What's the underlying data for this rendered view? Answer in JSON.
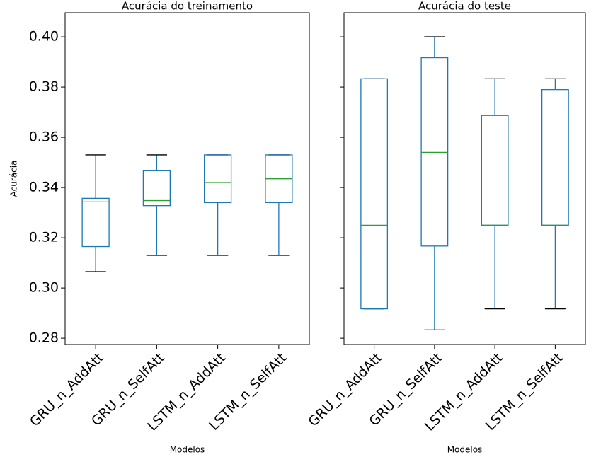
{
  "chart_data": [
    {
      "type": "box",
      "title": "Acurácia do treinamento",
      "xlabel": "Modelos",
      "ylabel": "Acurácia",
      "categories": [
        "GRU_n_AddAtt",
        "GRU_n_SelfAtt",
        "LSTM_n_AddAtt",
        "LSTM_n_SelfAtt"
      ],
      "boxes": [
        {
          "whislo": 0.3065,
          "q1": 0.3165,
          "med": 0.3343,
          "q3": 0.3357,
          "whishi": 0.353
        },
        {
          "whislo": 0.313,
          "q1": 0.3328,
          "med": 0.3348,
          "q3": 0.3467,
          "whishi": 0.353
        },
        {
          "whislo": 0.313,
          "q1": 0.334,
          "med": 0.342,
          "q3": 0.353,
          "whishi": 0.353
        },
        {
          "whislo": 0.313,
          "q1": 0.334,
          "med": 0.3435,
          "q3": 0.353,
          "whishi": 0.353
        }
      ],
      "color": "#1f77b4",
      "median_color": "#2ca02c",
      "ylim": [
        0.2775,
        0.4096
      ],
      "yticks": [
        0.28,
        {
          "value": 0.3,
          "label": "0.30"
        },
        0.32,
        0.34,
        0.36,
        0.38,
        {
          "value": 0.4,
          "label": "0.40"
        }
      ]
    },
    {
      "type": "box",
      "title": "Acurácia do teste",
      "xlabel": "Modelos",
      "categories": [
        "GRU_n_AddAtt",
        "GRU_n_SelfAtt",
        "LSTM_n_AddAtt",
        "LSTM_n_SelfAtt"
      ],
      "boxes": [
        {
          "whislo": 0.2917,
          "q1": 0.2917,
          "med": 0.325,
          "q3": 0.3833,
          "whishi": 0.3833
        },
        {
          "whislo": 0.2833,
          "q1": 0.3167,
          "med": 0.354,
          "q3": 0.3917,
          "whishi": 0.4
        },
        {
          "whislo": 0.2917,
          "q1": 0.325,
          "med": 0.325,
          "q3": 0.3687,
          "whishi": 0.3833
        },
        {
          "whislo": 0.2917,
          "q1": 0.325,
          "med": 0.325,
          "q3": 0.379,
          "whishi": 0.3833
        }
      ],
      "color": "#1f77b4",
      "median_color": "#2ca02c",
      "ylim": [
        0.2775,
        0.4096
      ],
      "yticks": [
        0.28,
        0.3,
        0.32,
        0.34,
        0.36,
        0.38,
        0.4
      ]
    }
  ]
}
